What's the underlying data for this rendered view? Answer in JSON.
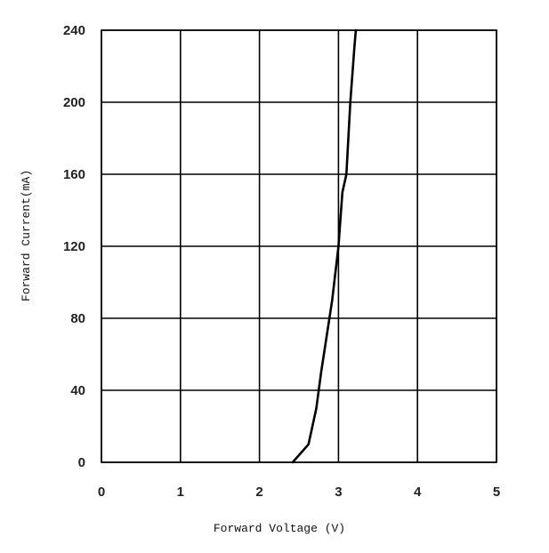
{
  "chart_data": {
    "type": "line",
    "title": "",
    "xlabel": "Forward Voltage (V)",
    "ylabel": "Forward Current(mA)",
    "xlim": [
      0,
      5
    ],
    "ylim": [
      0,
      240
    ],
    "x_ticks": [
      0,
      1,
      2,
      3,
      4,
      5
    ],
    "y_ticks": [
      0,
      40,
      80,
      120,
      160,
      200,
      240
    ],
    "grid": true,
    "legend": "none",
    "series": [
      {
        "x": [
          2.42,
          2.62,
          2.72,
          2.78,
          2.85,
          2.92,
          3.0,
          3.05,
          3.1,
          3.15,
          3.2,
          3.22
        ],
        "y": [
          0,
          10,
          30,
          50,
          70,
          90,
          120,
          150,
          160,
          200,
          230,
          240
        ]
      }
    ],
    "colors": {
      "line": "#000000",
      "grid": "#000000",
      "background": "#ffffff"
    }
  }
}
